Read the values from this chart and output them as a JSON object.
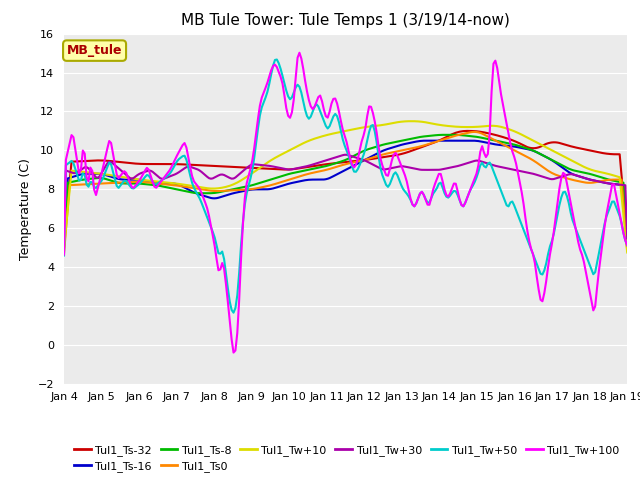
{
  "title": "MB Tule Tower: Tule Temps 1 (3/19/14-now)",
  "ylabel": "Temperature (C)",
  "ylim": [
    -2,
    16
  ],
  "yticks": [
    -2,
    0,
    2,
    4,
    6,
    8,
    10,
    12,
    14,
    16
  ],
  "xlim": [
    0,
    15
  ],
  "xtick_labels": [
    "Jan 4",
    "Jan 5",
    "Jan 6",
    "Jan 7",
    "Jan 8",
    "Jan 9",
    "Jan 10",
    "Jan 11",
    "Jan 12",
    "Jan 13",
    "Jan 14",
    "Jan 15",
    "Jan 16",
    "Jan 17",
    "Jan 18",
    "Jan 19"
  ],
  "legend_label": "MB_tule",
  "series": {
    "Tul1_Ts-32": {
      "color": "#cc0000"
    },
    "Tul1_Ts-16": {
      "color": "#0000cc"
    },
    "Tul1_Ts-8": {
      "color": "#00bb00"
    },
    "Tul1_Ts0": {
      "color": "#ff8800"
    },
    "Tul1_Tw+10": {
      "color": "#dddd00"
    },
    "Tul1_Tw+30": {
      "color": "#aa00aa"
    },
    "Tul1_Tw+50": {
      "color": "#00cccc"
    },
    "Tul1_Tw+100": {
      "color": "#ff00ff"
    }
  },
  "plot_bg": "#ebebeb",
  "grid_color": "#ffffff"
}
